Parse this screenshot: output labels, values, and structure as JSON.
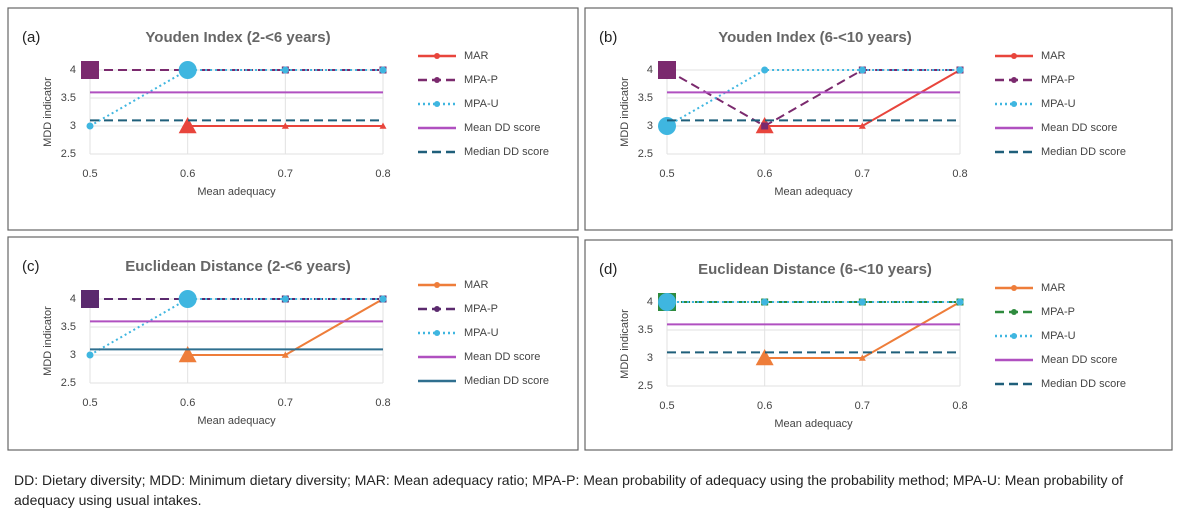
{
  "chart_data": [
    {
      "type": "line",
      "label": "(a)",
      "title": "Youden Index (2-<6 years)",
      "x_label": "Mean adequacy",
      "y_label": "MDD indicator",
      "x": [
        0.5,
        0.6,
        0.7,
        0.8
      ],
      "xlim": [
        0.5,
        0.8
      ],
      "xticks": [
        0.5,
        0.6,
        0.7,
        0.8
      ],
      "ylim": [
        2.5,
        4
      ],
      "yticks": [
        2.5,
        3,
        3.5,
        4
      ],
      "grid": true,
      "series": [
        {
          "name": "MAR",
          "color": "#e8453c",
          "line_style": "solid",
          "marker": "triangle",
          "highlight": 1,
          "values": [
            null,
            3,
            3,
            3
          ]
        },
        {
          "name": "MPA-P",
          "color": "#7b2a6e",
          "line_style": "dash",
          "marker": "square",
          "highlight": 0,
          "values": [
            4,
            4,
            4,
            4
          ]
        },
        {
          "name": "MPA-U",
          "color": "#3fb6e0",
          "line_style": "dot",
          "marker": "circle",
          "highlight": 1,
          "values": [
            3,
            4,
            4,
            4
          ]
        },
        {
          "name": "Mean DD score",
          "color": "#b050c0",
          "line_style": "solid",
          "marker": "none",
          "values": [
            3.6,
            3.6,
            3.6,
            3.6
          ]
        },
        {
          "name": "Median DD score",
          "color": "#1f5f7a",
          "line_style": "dash",
          "marker": "none",
          "values": [
            3.1,
            3.1,
            3.1,
            3.1
          ]
        }
      ]
    },
    {
      "type": "line",
      "label": "(b)",
      "title": "Youden Index (6-<10 years)",
      "x_label": "Mean adequacy",
      "y_label": "MDD indicator",
      "x": [
        0.5,
        0.6,
        0.7,
        0.8
      ],
      "xlim": [
        0.5,
        0.8
      ],
      "xticks": [
        0.5,
        0.6,
        0.7,
        0.8
      ],
      "ylim": [
        2.5,
        4
      ],
      "yticks": [
        2.5,
        3,
        3.5,
        4
      ],
      "grid": true,
      "series": [
        {
          "name": "MAR",
          "color": "#e8453c",
          "line_style": "solid",
          "marker": "triangle",
          "highlight": 1,
          "values": [
            null,
            3,
            3,
            4
          ]
        },
        {
          "name": "MPA-P",
          "color": "#7b2a6e",
          "line_style": "dash",
          "marker": "square",
          "highlight": 0,
          "values": [
            4,
            3,
            4,
            4
          ]
        },
        {
          "name": "MPA-U",
          "color": "#3fb6e0",
          "line_style": "dot",
          "marker": "circle",
          "highlight": 0,
          "values": [
            3,
            4,
            4,
            4
          ]
        },
        {
          "name": "Mean DD score",
          "color": "#b050c0",
          "line_style": "solid",
          "marker": "none",
          "values": [
            3.6,
            3.6,
            3.6,
            3.6
          ]
        },
        {
          "name": "Median DD score",
          "color": "#1f5f7a",
          "line_style": "dash",
          "marker": "none",
          "values": [
            3.1,
            3.1,
            3.1,
            3.1
          ]
        }
      ]
    },
    {
      "type": "line",
      "label": "(c)",
      "title": "Euclidean Distance (2-<6 years)",
      "x_label": "Mean adequacy",
      "y_label": "MDD indicator",
      "x": [
        0.5,
        0.6,
        0.7,
        0.8
      ],
      "xlim": [
        0.5,
        0.8
      ],
      "xticks": [
        0.5,
        0.6,
        0.7,
        0.8
      ],
      "ylim": [
        2.5,
        4
      ],
      "yticks": [
        2.5,
        3,
        3.5,
        4
      ],
      "grid": true,
      "series": [
        {
          "name": "MAR",
          "color": "#ee7d3a",
          "line_style": "solid",
          "marker": "triangle",
          "highlight": 1,
          "values": [
            null,
            3,
            3,
            4
          ]
        },
        {
          "name": "MPA-P",
          "color": "#5b2a6e",
          "line_style": "dash",
          "marker": "square",
          "highlight": 0,
          "values": [
            4,
            4,
            4,
            4
          ]
        },
        {
          "name": "MPA-U",
          "color": "#3fb6e0",
          "line_style": "dot",
          "marker": "circle",
          "highlight": 1,
          "values": [
            3,
            4,
            4,
            4
          ]
        },
        {
          "name": "Mean DD score",
          "color": "#b050c0",
          "line_style": "solid",
          "marker": "none",
          "values": [
            3.6,
            3.6,
            3.6,
            3.6
          ]
        },
        {
          "name": "Median DD score",
          "color": "#2f6f8f",
          "line_style": "solid",
          "marker": "none",
          "values": [
            3.1,
            3.1,
            3.1,
            3.1
          ]
        }
      ]
    },
    {
      "type": "line",
      "label": "(d)",
      "title": "Euclidean Distance (6-<10 years)",
      "x_label": "Mean adequacy",
      "y_label": "MDD indicator",
      "x": [
        0.5,
        0.6,
        0.7,
        0.8
      ],
      "xlim": [
        0.5,
        0.8
      ],
      "xticks": [
        0.5,
        0.6,
        0.7,
        0.8
      ],
      "ylim": [
        2.5,
        4
      ],
      "yticks": [
        2.5,
        3,
        3.5,
        4
      ],
      "grid": true,
      "series": [
        {
          "name": "MAR",
          "color": "#ee7d3a",
          "line_style": "solid",
          "marker": "triangle",
          "highlight": 1,
          "values": [
            null,
            3,
            3,
            4
          ]
        },
        {
          "name": "MPA-P",
          "color": "#2e8b3e",
          "line_style": "dash",
          "marker": "square",
          "highlight": 0,
          "values": [
            4,
            4,
            4,
            4
          ]
        },
        {
          "name": "MPA-U",
          "color": "#3fb6e0",
          "line_style": "dot",
          "marker": "circle",
          "highlight": 0,
          "values": [
            4,
            4,
            4,
            4
          ]
        },
        {
          "name": "Mean DD score",
          "color": "#b050c0",
          "line_style": "solid",
          "marker": "none",
          "values": [
            3.6,
            3.6,
            3.6,
            3.6
          ]
        },
        {
          "name": "Median DD score",
          "color": "#1f5f7a",
          "line_style": "dash",
          "marker": "none",
          "values": [
            3.1,
            3.1,
            3.1,
            3.1
          ]
        }
      ]
    }
  ],
  "caption": "DD: Dietary diversity; MDD: Minimum dietary diversity; MAR: Mean adequacy ratio; MPA-P: Mean probability of adequacy using the probability method; MPA-U: Mean probability of adequacy using usual intakes."
}
